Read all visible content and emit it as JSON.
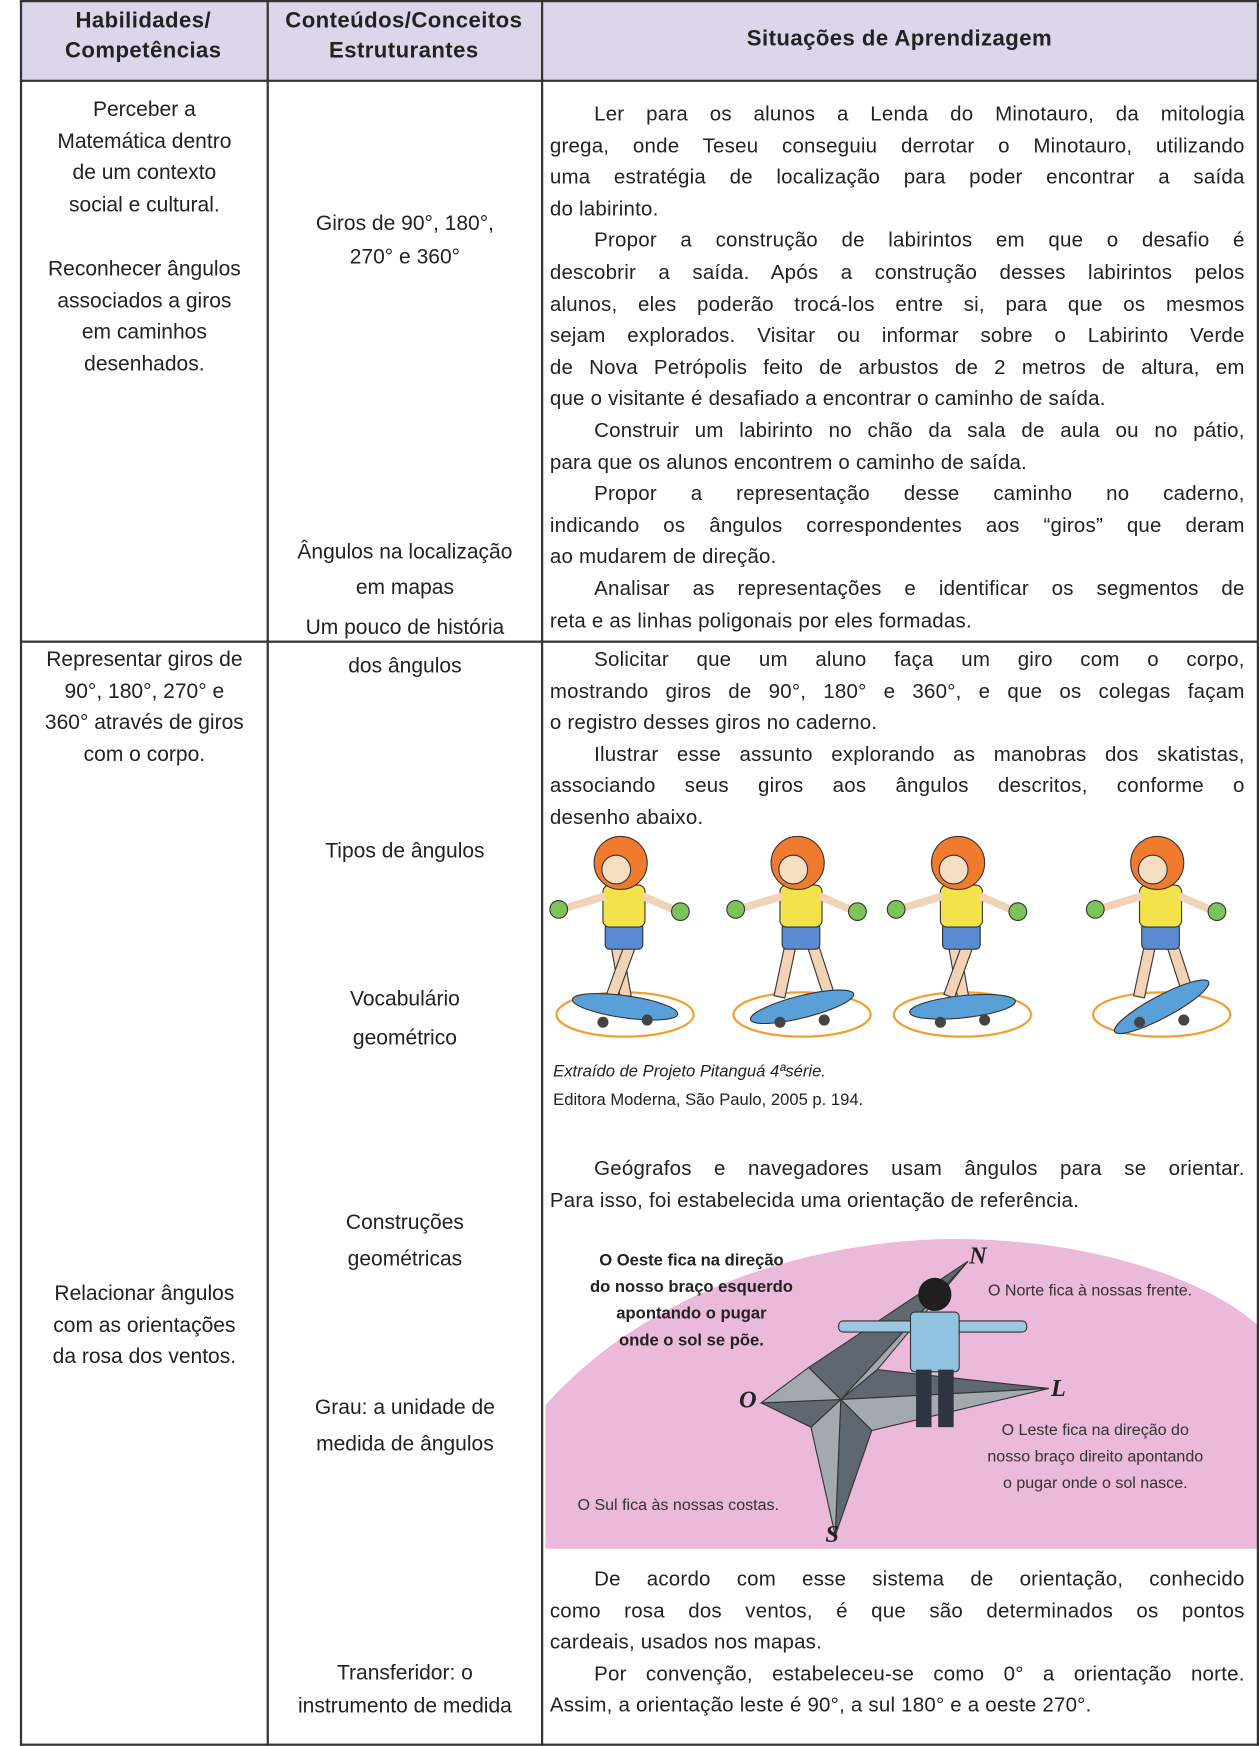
{
  "headers": [
    [
      "Habilidades/",
      "Competências"
    ],
    [
      "Conteúdos/Conceitos",
      "Estruturantes"
    ],
    [
      "Situações de Aprendizagem"
    ]
  ],
  "skills": [
    [
      "Perceber a",
      "Matemática dentro",
      "de um contexto",
      "social e cultural."
    ],
    [
      "Reconhecer ângulos",
      "associados a giros",
      "em caminhos",
      "desenhados."
    ],
    [
      "Representar giros de",
      "90°, 180°, 270° e",
      "360° através de giros",
      "com o corpo."
    ],
    [
      "Relacionar ângulos",
      "com as orientações",
      "da rosa dos ventos."
    ]
  ],
  "contents": [
    [
      "Giros de 90°, 180°,",
      "270° e 360°"
    ],
    [
      "Ângulos na localização",
      "em mapas"
    ],
    [
      "Um pouco de história",
      "dos ângulos"
    ],
    [
      "Tipos de ângulos"
    ],
    [
      "Vocabulário",
      "geométrico"
    ],
    [
      "Construções",
      "geométricas"
    ],
    [
      "Grau: a unidade de",
      "medida de ângulos"
    ],
    [
      "Transferidor: o",
      "instrumento de medida"
    ]
  ],
  "situations": [
    [
      [
        "Ler para os alunos a Lenda do Minotauro, da mitologia",
        "grega, onde Teseu conseguiu derrotar o Minotauro, utilizando",
        "uma estratégia de localização para poder encontrar a saída",
        "do labirinto."
      ],
      [
        "Propor a construção de labirintos em que o desafio é",
        "descobrir a saída. Após a construção desses labirintos pelos",
        "alunos, eles poderão trocá-los entre si, para que os mesmos",
        "sejam explorados. Visitar ou informar sobre o Labirinto Verde",
        "de Nova Petrópolis feito de arbustos de 2 metros de altura, em",
        "que o visitante é desafiado a encontrar o caminho de saída."
      ],
      [
        "Construir um labirinto no chão da sala de aula ou no pátio,",
        "para que os alunos encontrem o caminho de saída."
      ],
      [
        "Propor a representação desse caminho no caderno,",
        "indicando os ângulos correspondentes aos “giros” que deram",
        "ao mudarem de direção."
      ],
      [
        "Analisar as representações e identificar os segmentos de",
        "reta e as linhas poligonais por eles formadas."
      ]
    ],
    [
      [
        "Solicitar que um aluno faça um giro com o corpo,",
        "mostrando giros de 90°, 180° e 360°, e que os colegas façam",
        "o registro desses giros no caderno."
      ],
      [
        "Ilustrar esse assunto explorando as manobras dos skatistas,",
        "associando seus giros aos ângulos descritos, conforme o",
        "desenho abaixo."
      ]
    ],
    [
      [
        "Geógrafos e navegadores usam ângulos para se orientar.",
        "Para isso, foi estabelecida uma orientação de referência."
      ]
    ],
    [
      [
        "De acordo com esse sistema de orientação, conhecido",
        "como rosa dos ventos, é que são determinados os pontos",
        "cardeais, usados nos mapas."
      ],
      [
        "Por convenção, estabeleceu-se como 0° a orientação norte.",
        "Assim, a orientação leste é 90°, a sul 180° e a oeste 270°."
      ]
    ]
  ],
  "skaters_caption": [
    "Extraído de Projeto Pitanguá 4ªsérie.",
    "Editora Moderna, São Paulo, 2005 p. 194."
  ],
  "compass": {
    "west_note": [
      "O Oeste fica na direção",
      "do nosso braço esquerdo",
      "apontando o pugar",
      "onde o sol se põe."
    ],
    "north": "N",
    "north_note": "O Norte fica à nossas frente.",
    "west": "O",
    "east": "L",
    "east_note": [
      "O Leste fica na direção do",
      "nosso braço direito apontando",
      "o pugar onde o sol nasce."
    ],
    "south_note": "O Sul fica às nossas costas.",
    "south": "S"
  }
}
